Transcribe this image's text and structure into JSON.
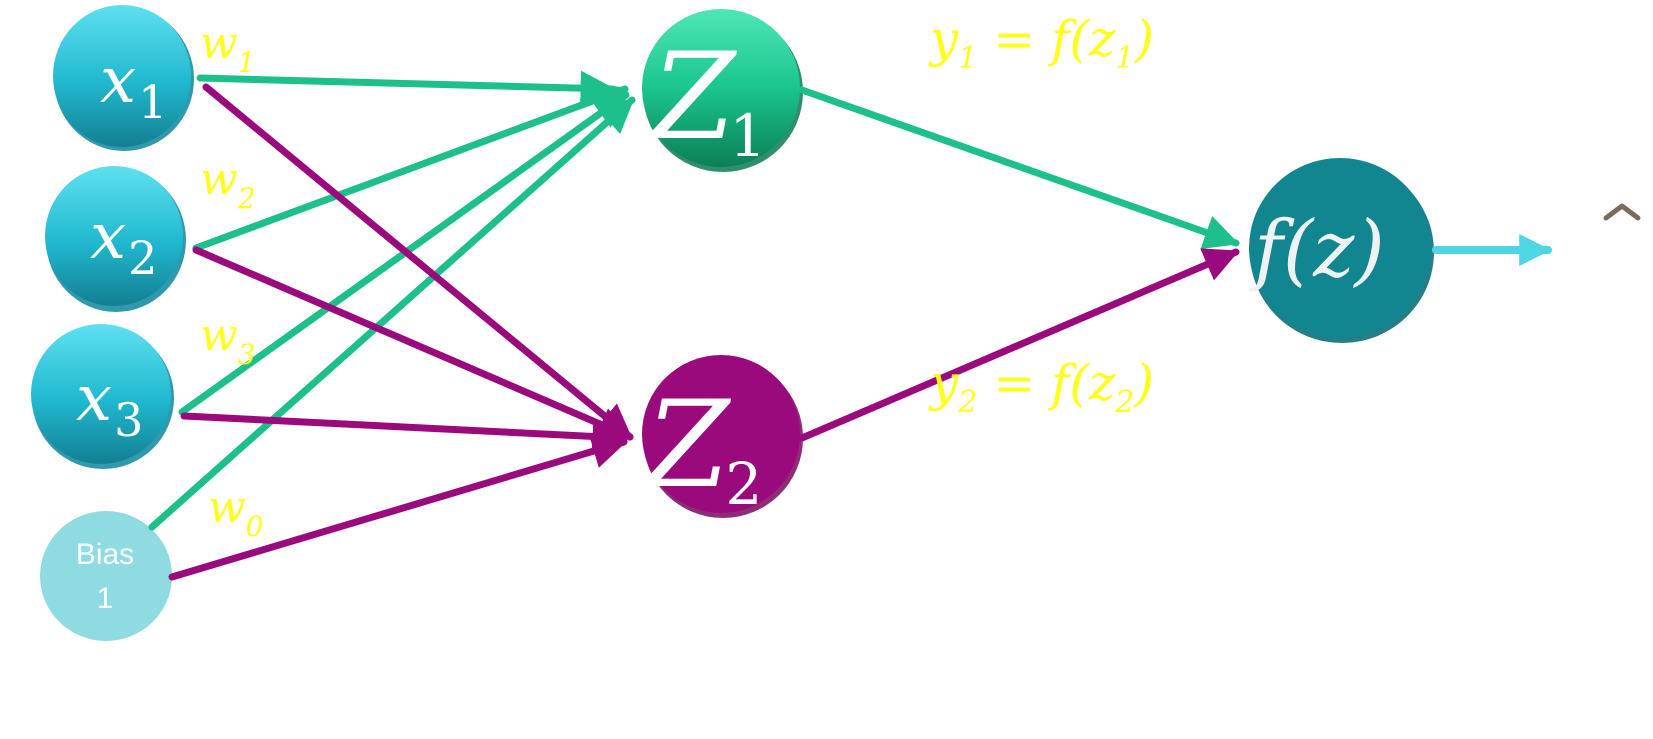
{
  "inputs": {
    "x1": {
      "var": "x",
      "sub": "1"
    },
    "x2": {
      "var": "x",
      "sub": "2"
    },
    "x3": {
      "var": "x",
      "sub": "3"
    },
    "bias": {
      "line1": "Bias",
      "line2": "1"
    }
  },
  "weights": {
    "w1": {
      "var": "w",
      "sub": "1"
    },
    "w2": {
      "var": "w",
      "sub": "2"
    },
    "w3": {
      "var": "w",
      "sub": "3"
    },
    "w0": {
      "var": "w",
      "sub": "0"
    }
  },
  "hidden": {
    "z1": {
      "var": "Z",
      "sub": "1"
    },
    "z2": {
      "var": "Z",
      "sub": "2"
    }
  },
  "equations": {
    "y1": {
      "y": "y",
      "ysub": "1",
      "eq": " = f(z",
      "zsub": "1",
      "close": ")"
    },
    "y2": {
      "y": "y",
      "ysub": "2",
      "eq": " = f(z",
      "zsub": "2",
      "close": ")"
    }
  },
  "output": {
    "label": "f(z)"
  },
  "colors": {
    "input_top": "#5ad8ea",
    "input_bottom": "#1792a8",
    "bias": "#8fdbe2",
    "green": "#1dbf8a",
    "green_dark": "#0e8a5c",
    "purple": "#9b0a7d",
    "output": "#128690",
    "arrow_out": "#4fd6e6",
    "label_yellow": "#ffff1a"
  },
  "icons": {
    "corner": "caret-up-icon"
  }
}
